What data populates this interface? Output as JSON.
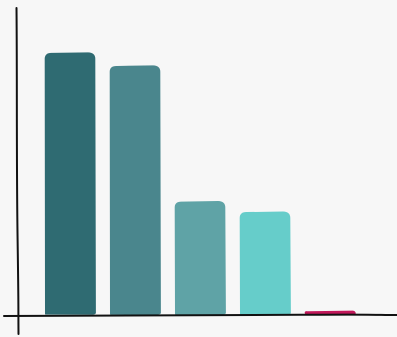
{
  "chart_data": {
    "type": "bar",
    "style": "hand-drawn",
    "categories": [
      "",
      "",
      "",
      "",
      ""
    ],
    "values": [
      100,
      95,
      43,
      39,
      1
    ],
    "ylim": [
      0,
      115
    ],
    "grid": false,
    "legend": "none",
    "title": "",
    "xlabel": "",
    "ylabel": "",
    "colors": [
      "#2f6b72",
      "#4a868d",
      "#5fa3a6",
      "#66cdca",
      "#c2185b"
    ],
    "axis_color": "#111111",
    "background": "#f7f7f7"
  }
}
